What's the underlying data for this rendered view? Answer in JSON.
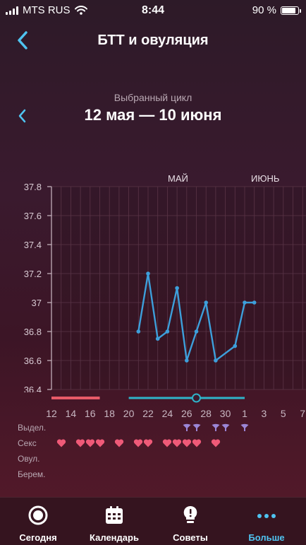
{
  "status_bar": {
    "carrier": "MTS RUS",
    "time": "8:44",
    "battery": "90 %"
  },
  "header": {
    "title": "БТТ и овуляция"
  },
  "cycle": {
    "caption": "Выбранный цикл",
    "range": "12 мая — 10 июня"
  },
  "months": [
    "МАЙ",
    "ИЮНЬ"
  ],
  "chart_data": {
    "type": "line",
    "ylim": [
      36.4,
      37.8
    ],
    "yticks": [
      "37.8",
      "37.6",
      "37.4",
      "37.2",
      "37",
      "36.8",
      "36.6",
      "36.4"
    ],
    "xtick_labels": [
      "12",
      "14",
      "16",
      "18",
      "20",
      "22",
      "24",
      "26",
      "28",
      "30",
      "1",
      "3",
      "5",
      "7"
    ],
    "series": [
      {
        "values": [
          {
            "x": 21,
            "y": 36.8
          },
          {
            "x": 22,
            "y": 37.2
          },
          {
            "x": 23,
            "y": 36.75
          },
          {
            "x": 24,
            "y": 36.8
          },
          {
            "x": 25,
            "y": 37.1
          },
          {
            "x": 26,
            "y": 36.6
          },
          {
            "x": 27,
            "y": 36.8
          },
          {
            "x": 28,
            "y": 37.0
          },
          {
            "x": 29,
            "y": 36.6
          },
          {
            "x": 31,
            "y": 36.7
          },
          {
            "x": 32,
            "y": 37.0
          },
          {
            "x": 33,
            "y": 37.0
          }
        ]
      }
    ],
    "colors": {
      "line": "#3d9fdb",
      "period": "#e85a68",
      "fertile": "#2fb3c9"
    }
  },
  "row_labels": {
    "discharge": "Выдел.",
    "sex": "Секс",
    "ovulation": "Овул.",
    "pregnancy": "Берем."
  },
  "discharge_days": [
    26,
    27,
    29,
    30,
    32
  ],
  "sex_days": [
    13,
    15,
    16,
    17,
    19,
    21,
    22,
    24,
    25,
    26,
    27,
    29
  ],
  "tabs": [
    {
      "label": "Сегодня",
      "icon": "today-ring-icon"
    },
    {
      "label": "Календарь",
      "icon": "calendar-icon"
    },
    {
      "label": "Советы",
      "icon": "lightbulb-icon"
    },
    {
      "label": "Больше",
      "icon": "more-dots-icon",
      "active": true
    }
  ]
}
